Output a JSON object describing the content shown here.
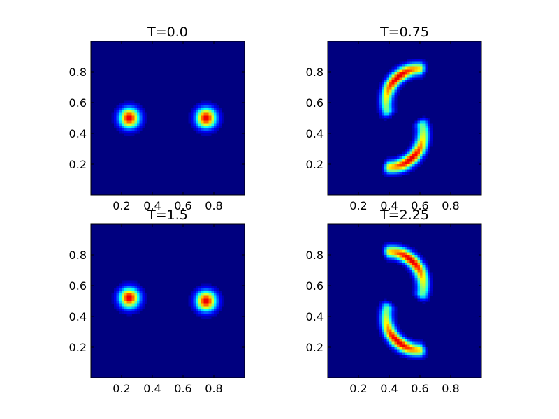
{
  "chart_data": [
    {
      "type": "heatmap",
      "title": "T=0.0",
      "xlabel": "",
      "ylabel": "",
      "xlim": [
        0,
        1
      ],
      "ylim": [
        0,
        1
      ],
      "xticks": [
        "0.2",
        "0.4",
        "0.6",
        "0.8"
      ],
      "yticks": [
        "0.2",
        "0.4",
        "0.6",
        "0.8"
      ],
      "colormap": "jet",
      "background_color": "#00007f",
      "grid": false,
      "blobs": [
        {
          "shape": "gaussian",
          "center": [
            0.25,
            0.5
          ],
          "sigma": 0.045,
          "peak": 1.0
        },
        {
          "shape": "gaussian",
          "center": [
            0.75,
            0.5
          ],
          "sigma": 0.045,
          "peak": 1.0
        }
      ]
    },
    {
      "type": "heatmap",
      "title": "T=0.75",
      "xlabel": "",
      "ylabel": "",
      "xlim": [
        0,
        1
      ],
      "ylim": [
        0,
        1
      ],
      "xticks": [
        "0.2",
        "0.4",
        "0.6",
        "0.8"
      ],
      "yticks": [
        "0.2",
        "0.4",
        "0.6",
        "0.8"
      ],
      "colormap": "jet",
      "background_color": "#00007f",
      "grid": false,
      "blobs": [
        {
          "shape": "arc",
          "center": [
            0.6,
            0.6
          ],
          "radius": 0.22,
          "angle_from": 90,
          "angle_to": 195,
          "peak_angle": 130,
          "width": 0.028,
          "peak": 1.0
        },
        {
          "shape": "arc",
          "center": [
            0.4,
            0.4
          ],
          "radius": 0.22,
          "angle_from": -90,
          "angle_to": 15,
          "peak_angle": -50,
          "width": 0.028,
          "peak": 1.0
        }
      ]
    },
    {
      "type": "heatmap",
      "title": "T=1.5",
      "xlabel": "",
      "ylabel": "",
      "xlim": [
        0,
        1
      ],
      "ylim": [
        0,
        1
      ],
      "xticks": [
        "0.2",
        "0.4",
        "0.6",
        "0.8"
      ],
      "yticks": [
        "0.2",
        "0.4",
        "0.6",
        "0.8"
      ],
      "colormap": "jet",
      "background_color": "#00007f",
      "grid": false,
      "blobs": [
        {
          "shape": "gaussian",
          "center": [
            0.25,
            0.52
          ],
          "sigma": 0.045,
          "peak": 1.0
        },
        {
          "shape": "gaussian",
          "center": [
            0.75,
            0.5
          ],
          "sigma": 0.045,
          "peak": 1.0
        }
      ]
    },
    {
      "type": "heatmap",
      "title": "T=2.25",
      "xlabel": "",
      "ylabel": "",
      "xlim": [
        0,
        1
      ],
      "ylim": [
        0,
        1
      ],
      "xticks": [
        "0.2",
        "0.4",
        "0.6",
        "0.8"
      ],
      "yticks": [
        "0.2",
        "0.4",
        "0.6",
        "0.8"
      ],
      "colormap": "jet",
      "background_color": "#00007f",
      "grid": false,
      "blobs": [
        {
          "shape": "arc",
          "center": [
            0.4,
            0.6
          ],
          "radius": 0.22,
          "angle_from": -15,
          "angle_to": 90,
          "peak_angle": 50,
          "width": 0.028,
          "peak": 1.0
        },
        {
          "shape": "arc",
          "center": [
            0.6,
            0.4
          ],
          "radius": 0.22,
          "angle_from": 165,
          "angle_to": 270,
          "peak_angle": 230,
          "width": 0.028,
          "peak": 1.0
        }
      ]
    }
  ]
}
